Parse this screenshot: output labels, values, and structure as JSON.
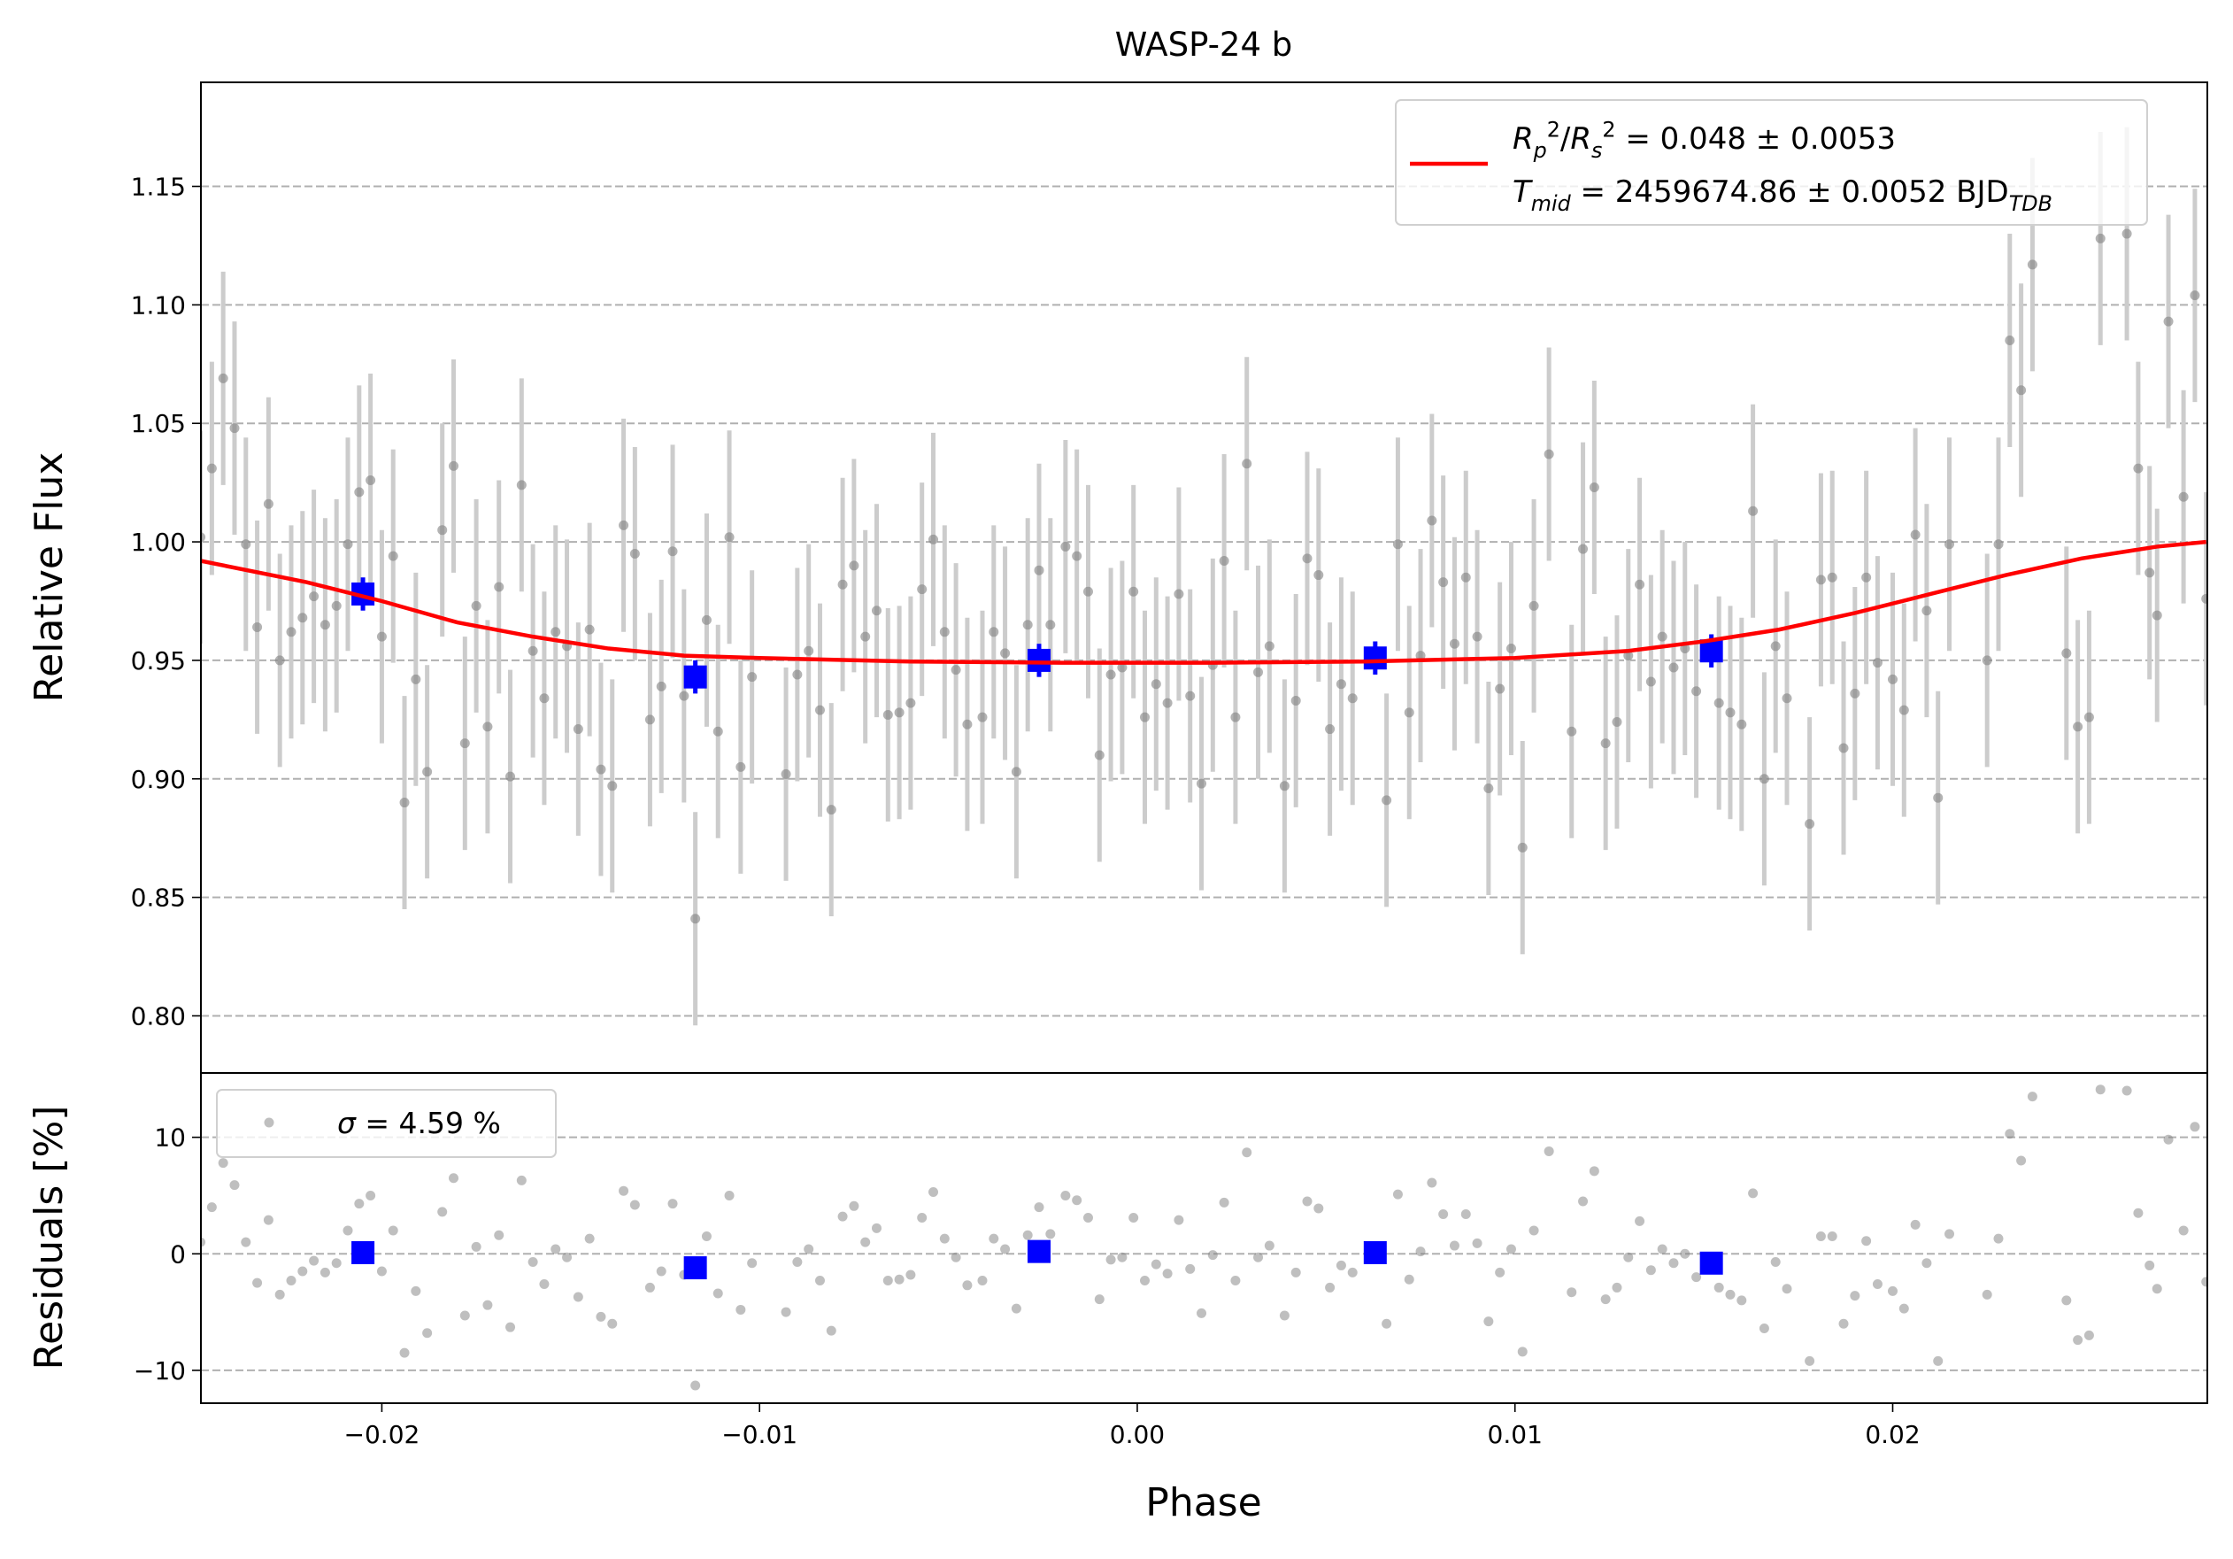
{
  "chart_data": [
    {
      "type": "scatter",
      "title": "WASP-24 b",
      "ylabel": "Relative Flux",
      "xlim": [
        -0.02479,
        0.02833
      ],
      "ylim": [
        0.7759,
        1.1939
      ],
      "yticks": [
        {
          "value": 0.8,
          "label": "0.80"
        },
        0.85,
        {
          "value": 0.9,
          "label": "0.90"
        },
        0.95,
        {
          "value": 1.0,
          "label": "1.00"
        },
        1.05,
        {
          "value": 1.1,
          "label": "1.10"
        },
        1.15
      ],
      "grid": true,
      "data": {
        "color": "#808080",
        "err_color": "#cccccc",
        "yerr": 0.045,
        "x": [
          -0.0248,
          -0.0245,
          -0.0242,
          -0.0239,
          -0.0236,
          -0.0233,
          -0.023,
          -0.0227,
          -0.0224,
          -0.0221,
          -0.0218,
          -0.0215,
          -0.0212,
          -0.0209,
          -0.0206,
          -0.0203,
          -0.02,
          -0.0197,
          -0.0194,
          -0.0191,
          -0.0188,
          -0.0184,
          -0.0181,
          -0.0178,
          -0.0175,
          -0.0172,
          -0.0169,
          -0.0166,
          -0.0163,
          -0.016,
          -0.0157,
          -0.0154,
          -0.0151,
          -0.0148,
          -0.0145,
          -0.0142,
          -0.0139,
          -0.0136,
          -0.0133,
          -0.0129,
          -0.0126,
          -0.0123,
          -0.012,
          -0.0117,
          -0.0114,
          -0.0111,
          -0.0108,
          -0.0105,
          -0.0102,
          -0.0093,
          -0.009,
          -0.0087,
          -0.0084,
          -0.0081,
          -0.0078,
          -0.0075,
          -0.0072,
          -0.0069,
          -0.0066,
          -0.0063,
          -0.006,
          -0.0057,
          -0.0054,
          -0.0051,
          -0.0048,
          -0.0045,
          -0.0041,
          -0.0038,
          -0.0035,
          -0.0032,
          -0.0029,
          -0.0026,
          -0.0023,
          -0.0019,
          -0.0016,
          -0.0013,
          -0.001,
          -0.0007,
          -0.0004,
          -0.0001,
          0.0002,
          0.0005,
          0.0008,
          0.0011,
          0.0014,
          0.0017,
          0.002,
          0.0023,
          0.0026,
          0.0029,
          0.0032,
          0.0035,
          0.0039,
          0.0042,
          0.0045,
          0.0048,
          0.0051,
          0.0054,
          0.0057,
          0.0066,
          0.0069,
          0.0072,
          0.0075,
          0.0078,
          0.0081,
          0.0084,
          0.0087,
          0.009,
          0.0093,
          0.0096,
          0.0099,
          0.0102,
          0.0105,
          0.0109,
          0.0115,
          0.0118,
          0.0121,
          0.0124,
          0.0127,
          0.013,
          0.0133,
          0.0136,
          0.0139,
          0.0142,
          0.0145,
          0.0148,
          0.0154,
          0.0157,
          0.016,
          0.0163,
          0.0166,
          0.0169,
          0.0172,
          0.0178,
          0.0181,
          0.0184,
          0.0187,
          0.019,
          0.0193,
          0.0196,
          0.02,
          0.0203,
          0.0206,
          0.0209,
          0.0212,
          0.0215,
          0.0225,
          0.0228,
          0.0231,
          0.0234,
          0.0237,
          0.0246,
          0.0249,
          0.0252,
          0.0255,
          0.0262,
          0.0265,
          0.0268,
          0.027,
          0.0273,
          0.0277,
          0.028,
          0.0283
        ],
        "y": [
          1.002,
          1.031,
          1.069,
          1.048,
          0.999,
          0.964,
          1.016,
          0.95,
          0.962,
          0.968,
          0.977,
          0.965,
          0.973,
          0.999,
          1.021,
          1.026,
          0.96,
          0.994,
          0.89,
          0.942,
          0.903,
          1.005,
          1.032,
          0.915,
          0.973,
          0.922,
          0.981,
          0.901,
          1.024,
          0.954,
          0.934,
          0.962,
          0.956,
          0.921,
          0.963,
          0.904,
          0.897,
          1.007,
          0.995,
          0.925,
          0.939,
          0.996,
          0.935,
          0.841,
          0.967,
          0.92,
          1.002,
          0.905,
          0.943,
          0.902,
          0.944,
          0.954,
          0.929,
          0.887,
          0.982,
          0.99,
          0.96,
          0.971,
          0.927,
          0.928,
          0.932,
          0.98,
          1.001,
          0.962,
          0.946,
          0.923,
          0.926,
          0.962,
          0.953,
          0.903,
          0.965,
          0.988,
          0.965,
          0.998,
          0.994,
          0.979,
          0.91,
          0.944,
          0.947,
          0.979,
          0.926,
          0.94,
          0.932,
          0.978,
          0.935,
          0.898,
          0.948,
          0.992,
          0.926,
          1.033,
          0.945,
          0.956,
          0.897,
          0.933,
          0.993,
          0.986,
          0.921,
          0.94,
          0.934,
          0.891,
          0.999,
          0.928,
          0.952,
          1.009,
          0.983,
          0.957,
          0.985,
          0.96,
          0.896,
          0.938,
          0.955,
          0.871,
          0.973,
          1.037,
          0.92,
          0.997,
          1.023,
          0.915,
          0.924,
          0.952,
          0.982,
          0.941,
          0.96,
          0.947,
          0.955,
          0.937,
          0.932,
          0.928,
          0.923,
          1.013,
          0.9,
          0.956,
          0.934,
          0.881,
          0.984,
          0.985,
          0.913,
          0.936,
          0.985,
          0.949,
          0.942,
          0.929,
          1.003,
          0.971,
          0.892,
          0.999,
          0.95,
          0.999,
          1.085,
          1.064,
          1.117,
          0.953,
          0.922,
          0.926,
          1.128,
          1.13,
          1.031,
          0.987,
          0.969,
          1.093,
          1.019,
          1.104,
          0.976
        ]
      },
      "binned": {
        "color": "#0000ff",
        "yerr": 0.007,
        "x": [
          -0.0205,
          -0.0117,
          -0.0026,
          0.0063,
          0.0152
        ],
        "y": [
          0.978,
          0.943,
          0.95,
          0.951,
          0.954
        ]
      },
      "model": {
        "color": "#ff0000",
        "x": [
          -0.0248,
          -0.022,
          -0.02,
          -0.018,
          -0.016,
          -0.014,
          -0.012,
          -0.01,
          -0.006,
          -0.002,
          0.002,
          0.006,
          0.01,
          0.013,
          0.015,
          0.017,
          0.019,
          0.021,
          0.023,
          0.025,
          0.027,
          0.0283
        ],
        "y": [
          0.992,
          0.983,
          0.975,
          0.966,
          0.96,
          0.955,
          0.952,
          0.951,
          0.9495,
          0.949,
          0.949,
          0.9495,
          0.951,
          0.954,
          0.958,
          0.963,
          0.97,
          0.978,
          0.986,
          0.993,
          0.998,
          1.0
        ],
        "legend": [
          [
            {
              "it": "R"
            },
            {
              "sub": "p"
            },
            {
              "sup": "2"
            },
            {
              "t": "/"
            },
            {
              "it": "R"
            },
            {
              "sub": "s"
            },
            {
              "sup": "2"
            },
            {
              "t": " = 0.048 ± 0.0053"
            }
          ],
          [
            {
              "it": "T"
            },
            {
              "sub": "mid"
            },
            {
              "t": " = 2459674.86 ± 0.0052 BJD"
            },
            {
              "sub": "TDB"
            }
          ]
        ]
      }
    },
    {
      "type": "scatter",
      "ylabel": "Residuals [%]",
      "xlabel": "Phase",
      "xlim": [
        -0.02479,
        0.02833
      ],
      "ylim": [
        -12.82,
        15.52
      ],
      "xticks": [
        {
          "value": -0.02,
          "label": "−0.02"
        },
        {
          "value": -0.01,
          "label": "−0.01"
        },
        {
          "value": 0,
          "label": "0.00"
        },
        {
          "value": 0.01,
          "label": "0.01"
        },
        {
          "value": 0.02,
          "label": "0.02"
        }
      ],
      "yticks": [
        {
          "value": -10,
          "label": "−10"
        },
        0,
        10
      ],
      "grid": true,
      "legend": [
        {
          "it": "σ"
        },
        {
          "t": " = 4.59 %"
        }
      ],
      "residuals": [
        1,
        4,
        7.8,
        5.9,
        1,
        -2.5,
        2.9,
        -3.5,
        -2.3,
        -1.5,
        -0.6,
        -1.6,
        -0.8,
        2,
        4.3,
        5,
        -1.5,
        2,
        -8.5,
        -3.2,
        -6.8,
        3.6,
        6.5,
        -5.3,
        0.6,
        -4.4,
        1.6,
        -6.3,
        6.3,
        -0.7,
        -2.6,
        0.4,
        -0.3,
        -3.7,
        1.3,
        -5.4,
        -6,
        5.4,
        4.2,
        -2.9,
        -1.5,
        4.3,
        -1.8,
        -11.3,
        1.5,
        -3.4,
        5,
        -4.8,
        -0.8,
        -5,
        -0.7,
        0.4,
        -2.3,
        -6.6,
        3.2,
        4.1,
        1,
        2.2,
        -2.3,
        -2.2,
        -1.8,
        3.1,
        5.3,
        1.3,
        -0.3,
        -2.7,
        -2.3,
        1.3,
        0.4,
        -4.7,
        1.6,
        4,
        1.7,
        5,
        4.6,
        3.1,
        -3.9,
        -0.5,
        -0.3,
        3.1,
        -2.3,
        -0.9,
        -1.7,
        2.9,
        -1.3,
        -5.1,
        -0.1,
        4.4,
        -2.3,
        8.7,
        -0.3,
        0.7,
        -5.3,
        -1.6,
        4.5,
        3.9,
        -2.9,
        -1,
        -1.6,
        -6,
        5.1,
        -2.2,
        0.2,
        6.1,
        3.4,
        0.7,
        3.4,
        0.9,
        -5.8,
        -1.6,
        0.4,
        -8.4,
        2,
        8.8,
        -3.3,
        4.5,
        7.1,
        -3.9,
        -2.9,
        -0.3,
        2.8,
        -1.4,
        0.4,
        -0.8,
        0,
        -2,
        -2.9,
        -3.5,
        -4,
        5.2,
        -6.4,
        -0.7,
        -3,
        -9.2,
        1.5,
        1.5,
        -6,
        -3.6,
        1.1,
        -2.6,
        -3.2,
        -4.7,
        2.5,
        -0.8,
        -9.2,
        1.7,
        -3.5,
        1.3,
        10.3,
        8,
        13.5,
        -4,
        -7.4,
        -7,
        14.1,
        14,
        3.5,
        -1,
        -3,
        9.8,
        2,
        10.9,
        -2.4
      ],
      "binned_residuals": [
        0.1,
        -1.2,
        0.2,
        0.1,
        -0.8
      ]
    }
  ]
}
